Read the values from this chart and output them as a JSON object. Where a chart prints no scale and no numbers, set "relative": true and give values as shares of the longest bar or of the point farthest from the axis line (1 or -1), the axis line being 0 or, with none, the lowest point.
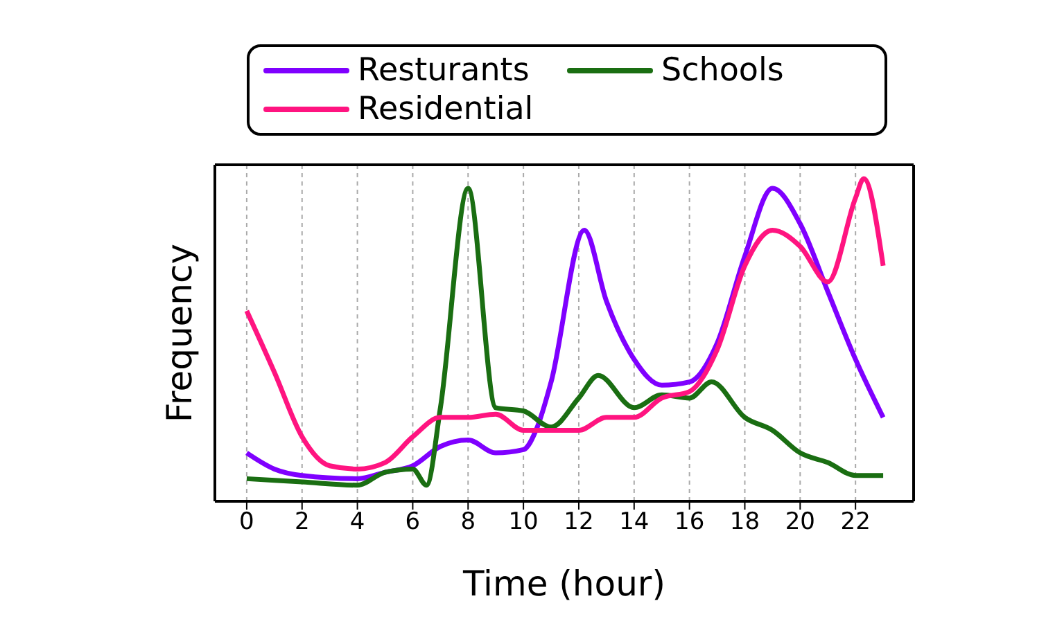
{
  "chart_data": {
    "type": "line",
    "xlabel": "Time (hour)",
    "ylabel": "Frequency",
    "relative": true,
    "xlim": [
      -1.15,
      24.1
    ],
    "xticks": [
      0,
      2,
      4,
      6,
      8,
      10,
      12,
      14,
      16,
      18,
      20,
      22
    ],
    "grid": "x",
    "legend": "top",
    "line_style": "solid",
    "marker": "none",
    "series": [
      {
        "name": "Resturants",
        "color": "#7f00ff",
        "x": [
          0,
          1,
          2,
          4,
          5,
          6,
          7,
          8,
          9,
          10,
          10.5,
          11,
          12.2,
          13,
          14,
          15,
          16,
          17,
          18,
          19,
          20,
          21,
          22,
          23
        ],
        "values": [
          0.15,
          0.1,
          0.08,
          0.07,
          0.09,
          0.11,
          0.17,
          0.19,
          0.15,
          0.16,
          0.23,
          0.37,
          0.84,
          0.62,
          0.44,
          0.36,
          0.37,
          0.49,
          0.76,
          0.97,
          0.86,
          0.65,
          0.44,
          0.26
        ]
      },
      {
        "name": "Schools",
        "color": "#1a6e12",
        "x": [
          0,
          2,
          4,
          5,
          6,
          6.5,
          7,
          8,
          9,
          10,
          11,
          12,
          12.7,
          14,
          15,
          16,
          16.8,
          18,
          19,
          20,
          21,
          22,
          23
        ],
        "values": [
          0.07,
          0.06,
          0.05,
          0.09,
          0.1,
          0.05,
          0.29,
          0.97,
          0.29,
          0.28,
          0.23,
          0.32,
          0.39,
          0.29,
          0.33,
          0.32,
          0.37,
          0.26,
          0.22,
          0.15,
          0.12,
          0.08,
          0.08
        ]
      },
      {
        "name": "Residential",
        "color": "#ff1480",
        "x": [
          0,
          1,
          2,
          3,
          4,
          5,
          6,
          7,
          8,
          9,
          10,
          11,
          12,
          13,
          14,
          15,
          16,
          17,
          18,
          19,
          20,
          21,
          22,
          22.3,
          23
        ],
        "values": [
          0.59,
          0.4,
          0.2,
          0.11,
          0.1,
          0.12,
          0.2,
          0.26,
          0.26,
          0.27,
          0.22,
          0.22,
          0.22,
          0.26,
          0.26,
          0.32,
          0.34,
          0.47,
          0.73,
          0.84,
          0.79,
          0.68,
          0.94,
          1.0,
          0.73
        ]
      }
    ]
  }
}
